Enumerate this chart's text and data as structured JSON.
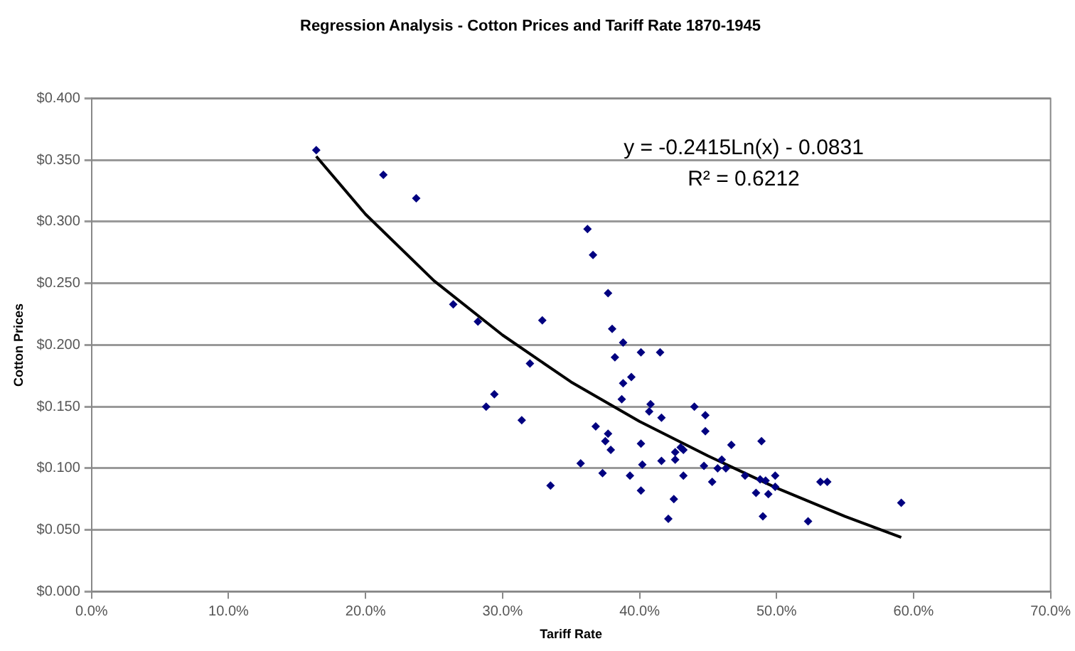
{
  "chart_data": {
    "type": "scatter",
    "title": "Regression Analysis - Cotton Prices and Tariff Rate 1870-1945",
    "xlabel": "Tariff Rate",
    "ylabel": "Cotton Prices",
    "xlim": [
      0,
      70
    ],
    "ylim": [
      0,
      0.4
    ],
    "xticks": [
      {
        "value": 0,
        "label": "0.0%"
      },
      {
        "value": 10,
        "label": "10.0%"
      },
      {
        "value": 20,
        "label": "20.0%"
      },
      {
        "value": 30,
        "label": "30.0%"
      },
      {
        "value": 40,
        "label": "40.0%"
      },
      {
        "value": 50,
        "label": "50.0%"
      },
      {
        "value": 60,
        "label": "60.0%"
      },
      {
        "value": 70,
        "label": "70.0%"
      }
    ],
    "yticks": [
      {
        "value": 0,
        "label": "$0.000"
      },
      {
        "value": 0.05,
        "label": "$0.050"
      },
      {
        "value": 0.1,
        "label": "$0.100"
      },
      {
        "value": 0.15,
        "label": "$0.150"
      },
      {
        "value": 0.2,
        "label": "$0.200"
      },
      {
        "value": 0.25,
        "label": "$0.250"
      },
      {
        "value": 0.3,
        "label": "$0.300"
      },
      {
        "value": 0.35,
        "label": "$0.350"
      },
      {
        "value": 0.4,
        "label": "$0.400"
      }
    ],
    "grid": "y",
    "legend": false,
    "annotations": [
      "y = -0.2415Ln(x) - 0.0831",
      "R² = 0.6212"
    ],
    "series": [
      {
        "color": "#000080",
        "marker": "diamond",
        "x": [
          16.4,
          21.3,
          23.7,
          26.4,
          28.2,
          32.9,
          32.0,
          36.2,
          36.6,
          37.7,
          38.0,
          38.8,
          38.2,
          40.1,
          41.5,
          39.4,
          38.8,
          29.4,
          28.8,
          38.7,
          40.8,
          40.7,
          44.0,
          44.8,
          41.6,
          31.4,
          36.8,
          37.7,
          37.5,
          37.9,
          44.8,
          40.1,
          43.0,
          42.6,
          43.2,
          46.7,
          48.9,
          35.7,
          40.2,
          41.6,
          42.6,
          44.7,
          45.7,
          46.0,
          46.3,
          33.5,
          37.3,
          39.3,
          43.2,
          45.3,
          40.1,
          42.5,
          42.1,
          47.7,
          48.5,
          49.2,
          49.4,
          49.9,
          49.0,
          52.3,
          48.8,
          49.9,
          53.2,
          53.7,
          59.1
        ],
        "values": [
          0.358,
          0.338,
          0.319,
          0.233,
          0.219,
          0.22,
          0.185,
          0.294,
          0.273,
          0.242,
          0.213,
          0.202,
          0.19,
          0.194,
          0.194,
          0.174,
          0.169,
          0.16,
          0.15,
          0.156,
          0.152,
          0.146,
          0.15,
          0.143,
          0.141,
          0.139,
          0.134,
          0.128,
          0.122,
          0.115,
          0.13,
          0.12,
          0.117,
          0.113,
          0.115,
          0.119,
          0.122,
          0.104,
          0.103,
          0.106,
          0.107,
          0.102,
          0.1,
          0.107,
          0.1,
          0.086,
          0.096,
          0.094,
          0.094,
          0.089,
          0.082,
          0.075,
          0.059,
          0.094,
          0.08,
          0.09,
          0.079,
          0.094,
          0.061,
          0.057,
          0.091,
          0.085,
          0.089,
          0.089,
          0.072
        ]
      },
      {
        "type": "line",
        "marker": "none",
        "color": "#000000",
        "x": [
          16.4,
          20,
          25,
          30,
          35,
          40,
          45,
          50,
          55,
          59.1
        ],
        "values": [
          0.353,
          0.306,
          0.252,
          0.208,
          0.17,
          0.138,
          0.11,
          0.084,
          0.061,
          0.044
        ]
      }
    ]
  }
}
